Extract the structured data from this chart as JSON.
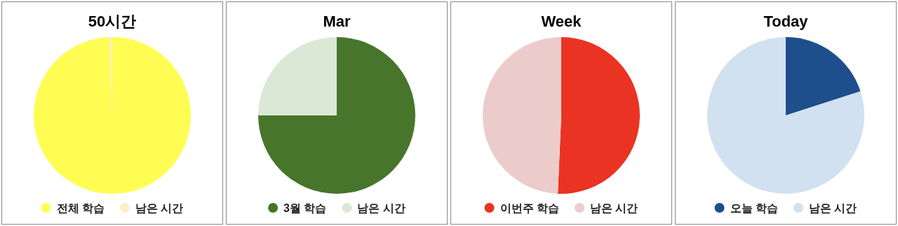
{
  "chart_data": [
    {
      "type": "pie",
      "title": "50시간",
      "categories": [
        "전체 학습",
        "남은 시간"
      ],
      "values": [
        99.5,
        0.5
      ],
      "colors": [
        "#fffd54",
        "#fdedc9"
      ],
      "legend": "bottom"
    },
    {
      "type": "pie",
      "title": "Mar",
      "categories": [
        "3월 학습",
        "남은 시간"
      ],
      "values": [
        75,
        25
      ],
      "colors": [
        "#48752c",
        "#dbe8d5"
      ],
      "legend": "bottom"
    },
    {
      "type": "pie",
      "title": "Week",
      "categories": [
        "이번주 학습",
        "남은 시간"
      ],
      "values": [
        50.7,
        49.3
      ],
      "colors": [
        "#ea3323",
        "#eccccb"
      ],
      "legend": "bottom"
    },
    {
      "type": "pie",
      "title": "Today",
      "categories": [
        "오늘 학습",
        "남은 시간"
      ],
      "values": [
        20,
        80
      ],
      "colors": [
        "#1f4e8c",
        "#d2e1f0"
      ],
      "legend": "bottom"
    }
  ]
}
